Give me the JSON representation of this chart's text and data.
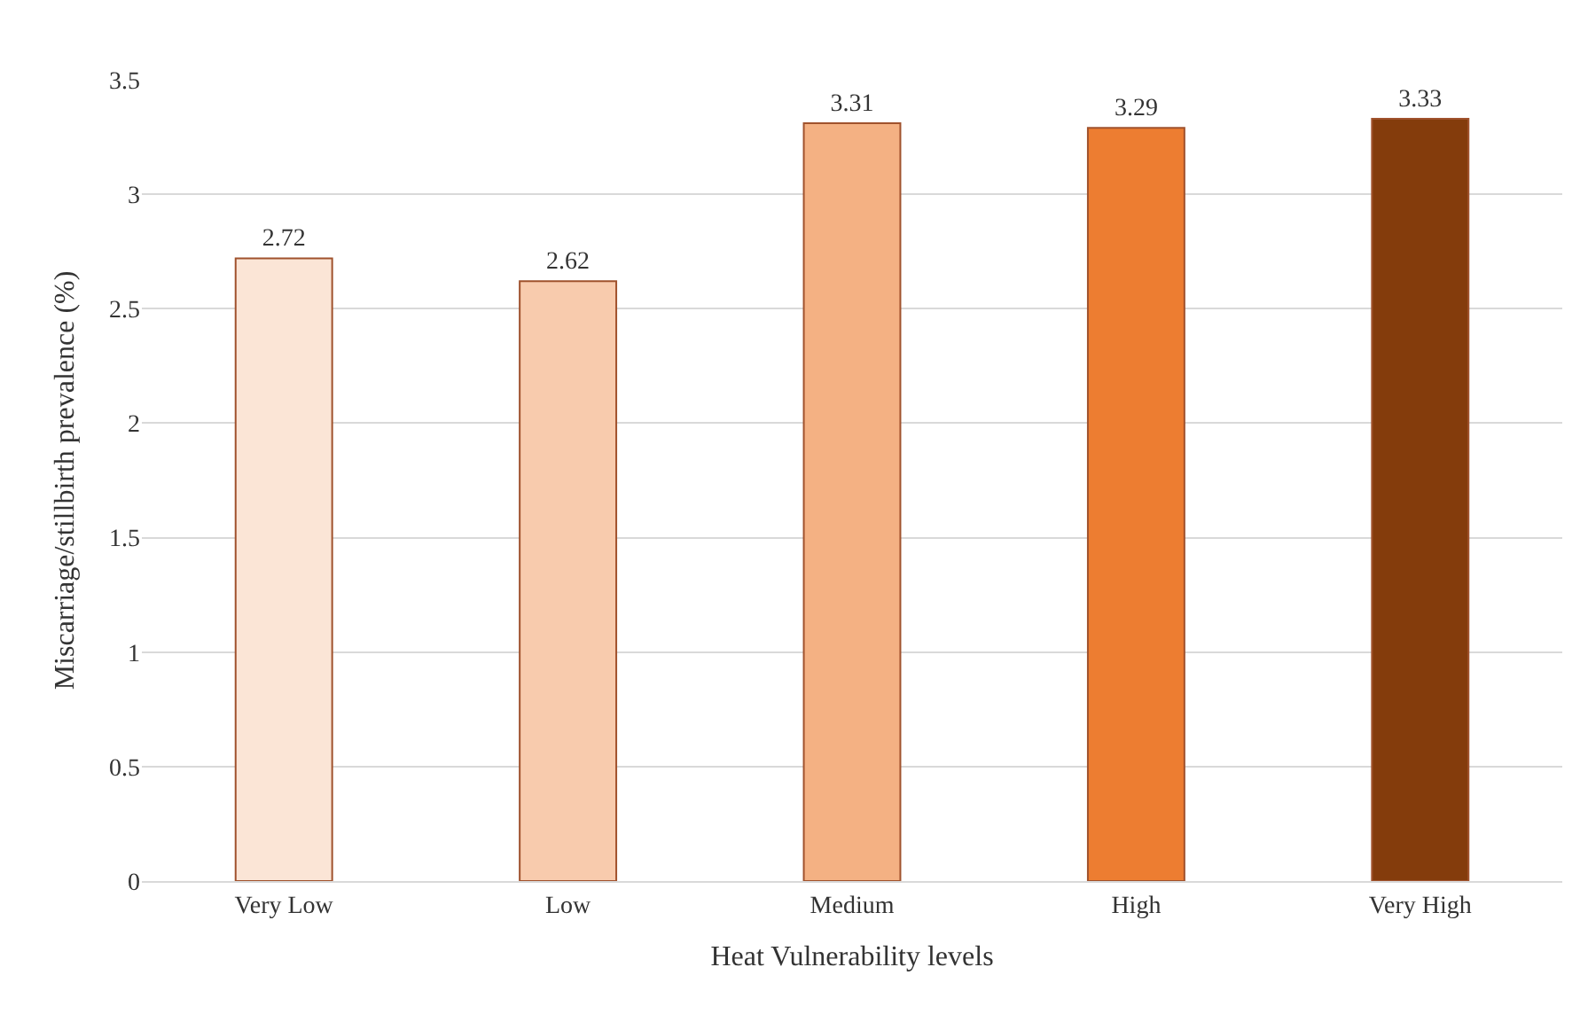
{
  "chart_data": {
    "type": "bar",
    "xlabel": "Heat Vulnerability levels",
    "ylabel": "Miscarriage/stillbirth prevalence (%)",
    "categories": [
      "Very Low",
      "Low",
      "Medium",
      "High",
      "Very High"
    ],
    "values": [
      2.72,
      2.62,
      3.31,
      3.29,
      3.33
    ],
    "colors": [
      "#fbe5d6",
      "#f8cbad",
      "#f4b183",
      "#ed7d31",
      "#843c0c"
    ],
    "ylim": [
      0,
      3.5
    ],
    "yticks": [
      0,
      0.5,
      1,
      1.5,
      2,
      2.5,
      3,
      3.5
    ],
    "grid": "y",
    "data_labels": true
  }
}
